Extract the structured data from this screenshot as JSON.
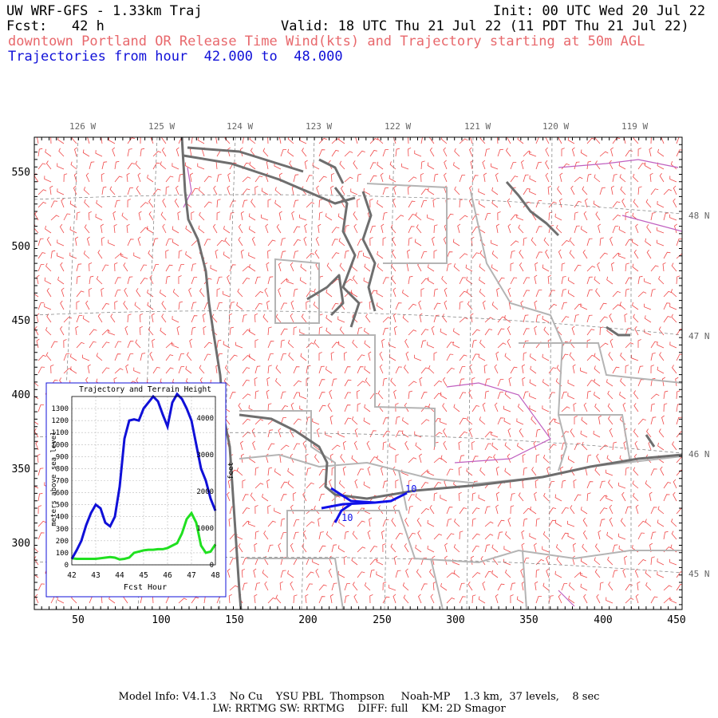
{
  "header": {
    "title": "UW WRF-GFS - 1.33km Traj",
    "init": "Init: 00 UTC Wed 20 Jul 22",
    "fcst": "Fcst:   42 h",
    "valid": "Valid: 18 UTC Thu 21 Jul 22 (11 PDT Thu 21 Jul 22)",
    "subtitle_red": "downtown Portland OR Release Time Wind(kts) and Trajectory starting at 50m AGL",
    "subtitle_blue": "Trajectories from hour  42.000 to  48.000"
  },
  "map": {
    "lon_labels": [
      "126 W",
      "125 W",
      "124 W",
      "123 W",
      "122 W",
      "121 W",
      "120 W",
      "119 W"
    ],
    "lat_labels": [
      "48 N",
      "47 N",
      "46 N",
      "45 N"
    ],
    "y_ticks": [
      550,
      500,
      450,
      400,
      350,
      300
    ],
    "x_ticks": [
      50,
      100,
      150,
      200,
      250,
      300,
      350,
      400,
      450
    ],
    "trajectory_labels": [
      "10",
      "10"
    ],
    "colors": {
      "wind": "#f04848",
      "coast": "#6e6e6e",
      "borders": "#b4b4b4",
      "grid": "#7a7a7a",
      "trajectory": "#1010e8",
      "water": "#c060c0"
    }
  },
  "inset": {
    "title": "Trajectory and Terrain Height",
    "ylabel_left": "meters above sea level",
    "ylabel_right": "feet",
    "xlabel": "Fcst Hour",
    "left_ticks": [
      "1300",
      "1200",
      "1100",
      "1000",
      "900",
      "800",
      "700",
      "600",
      "500",
      "400",
      "300",
      "200",
      "100",
      "0"
    ],
    "right_ticks": [
      "4000",
      "3000",
      "2000",
      "1000",
      "0"
    ],
    "x_ticks": [
      "42",
      "43",
      "44",
      "45",
      "46",
      "47",
      "48"
    ],
    "chart_data": {
      "type": "line",
      "x": [
        42.0,
        42.2,
        42.4,
        42.6,
        42.8,
        43.0,
        43.2,
        43.4,
        43.6,
        43.8,
        44.0,
        44.2,
        44.4,
        44.6,
        44.8,
        45.0,
        45.2,
        45.4,
        45.6,
        45.8,
        46.0,
        46.2,
        46.4,
        46.6,
        46.8,
        47.0,
        47.2,
        47.4,
        47.6,
        47.8,
        48.0
      ],
      "series": [
        {
          "values": [
            50,
            120,
            200,
            330,
            430,
            500,
            470,
            350,
            320,
            400,
            650,
            1050,
            1200,
            1210,
            1200,
            1300,
            1350,
            1400,
            1360,
            1250,
            1150,
            1350,
            1420,
            1380,
            1300,
            1200,
            1000,
            800,
            700,
            550,
            450
          ]
        },
        {
          "values": [
            55,
            50,
            50,
            50,
            50,
            50,
            55,
            60,
            65,
            60,
            45,
            50,
            60,
            100,
            110,
            120,
            125,
            125,
            130,
            130,
            140,
            160,
            180,
            260,
            380,
            430,
            350,
            160,
            100,
            110,
            170
          ]
        }
      ],
      "xlim": [
        42,
        48
      ],
      "ylim": [
        0,
        1400
      ],
      "grid": true,
      "colors": [
        "#1010d8",
        "#20e020"
      ]
    }
  },
  "footer": {
    "line1": "Model Info: V4.1.3    No Cu    YSU PBL  Thompson     Noah-MP    1.3 km,  37 levels,    8 sec",
    "line2": "LW: RRTMG SW: RRTMG    DIFF: full    KM: 2D Smagor"
  }
}
